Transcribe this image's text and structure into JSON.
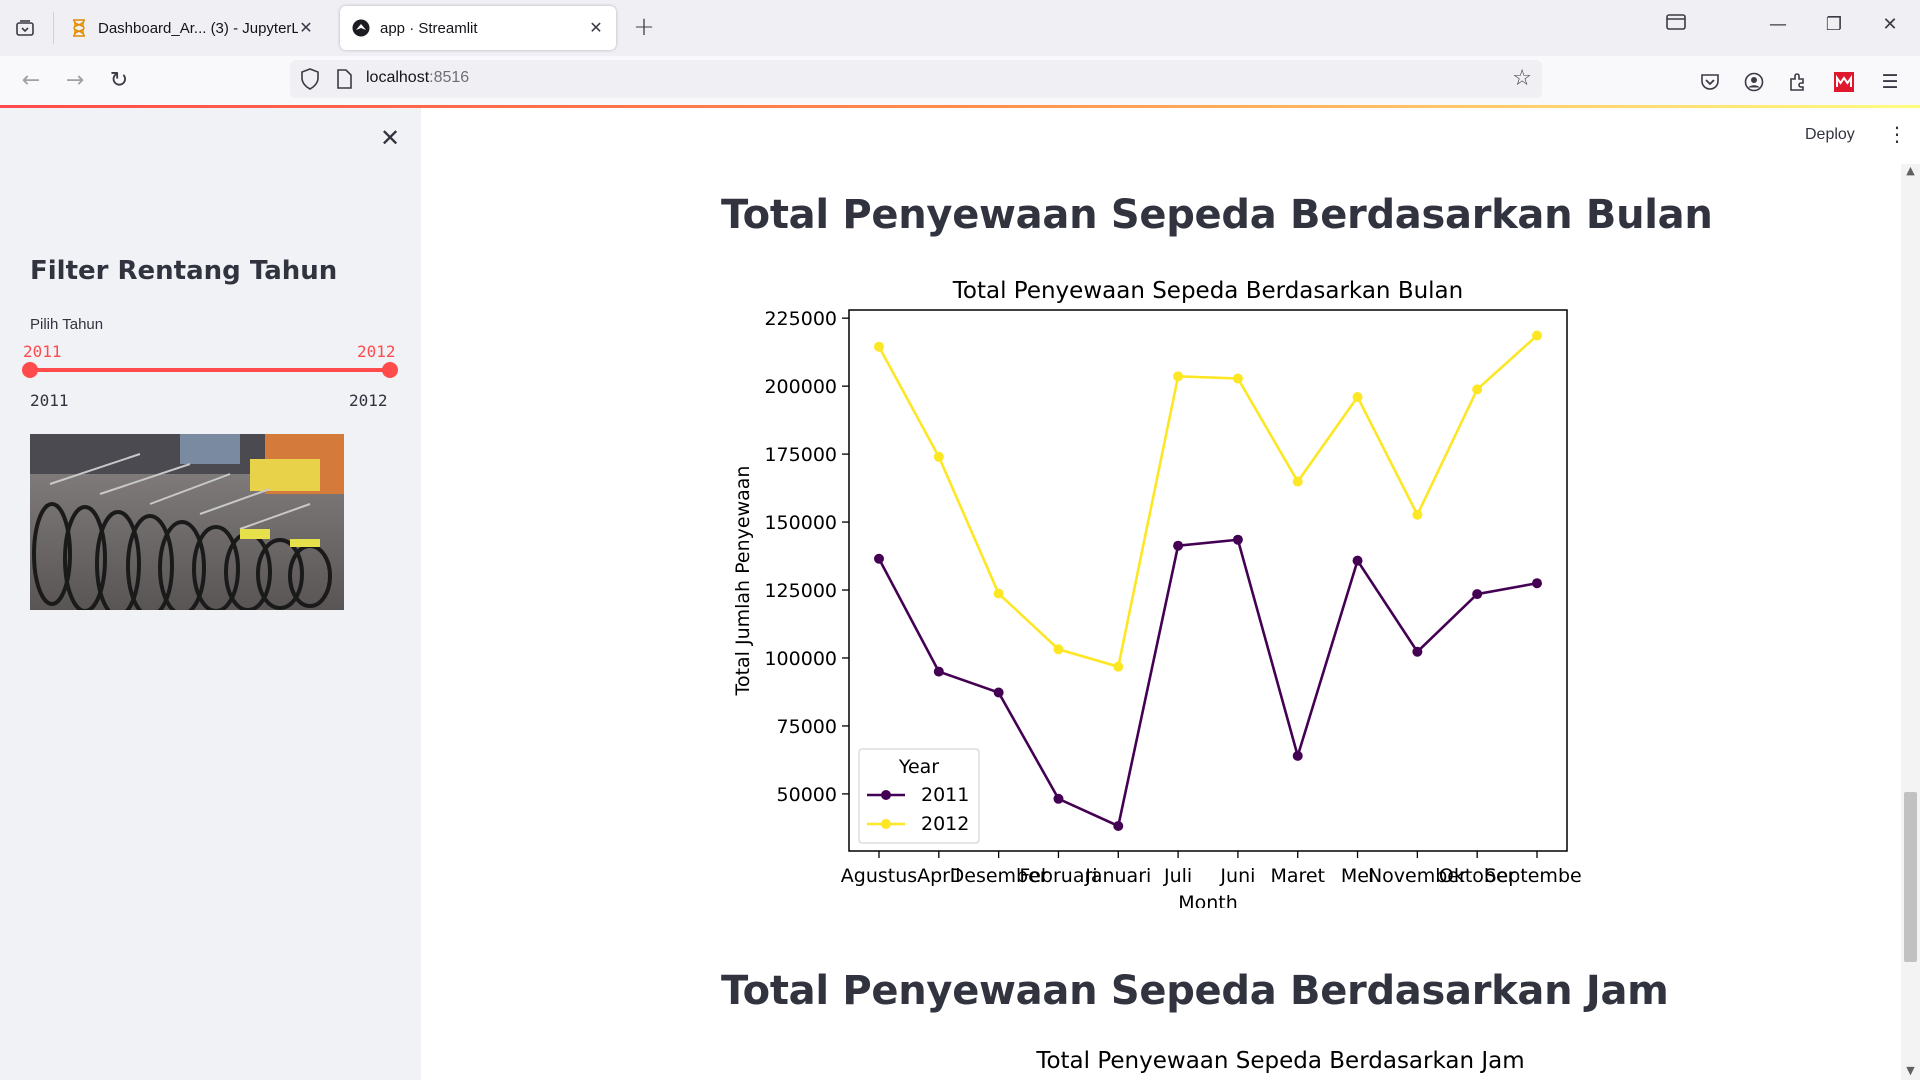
{
  "browser": {
    "tabs": [
      {
        "title": "Dashboard_Ar... (3) - JupyterLab",
        "active": false,
        "icon": "hourglass-icon"
      },
      {
        "title": "app · Streamlit",
        "active": true,
        "icon": "streamlit-icon"
      }
    ],
    "url": {
      "host": "localhost",
      "port": ":8516"
    }
  },
  "app": {
    "deploy_label": "Deploy",
    "sidebar": {
      "title": "Filter Rentang Tahun",
      "slider": {
        "label": "Pilih Tahun",
        "value_low": "2011",
        "value_high": "2012",
        "min": "2011",
        "max": "2012",
        "accent": "#ff4b4b"
      }
    },
    "main": {
      "heading1": "Total Penyewaan Sepeda Berdasarkan Bulan",
      "heading2": "Total Penyewaan Sepeda Berdasarkan Jam",
      "chart2_title": "Total Penyewaan Sepeda Berdasarkan Jam"
    }
  },
  "chart_data": {
    "type": "line",
    "title": "Total Penyewaan Sepeda Berdasarkan Bulan",
    "xlabel": "Month",
    "ylabel": "Total Jumlah Penyewaan",
    "categories": [
      "Agustus",
      "April",
      "Desember",
      "Februari",
      "Januari",
      "Juli",
      "Juni",
      "Maret",
      "Mei",
      "November",
      "Oktober",
      "September"
    ],
    "yticks": [
      "50000",
      "75000",
      "100000",
      "125000",
      "150000",
      "175000",
      "200000",
      "225000"
    ],
    "ylim": [
      29000,
      228000
    ],
    "legend": {
      "title": "Year",
      "position": "lower-left"
    },
    "series": [
      {
        "name": "2011",
        "color": "#440154",
        "values": [
          136500,
          95000,
          87300,
          48200,
          38200,
          141300,
          143500,
          64000,
          135800,
          102300,
          123500,
          127500
        ]
      },
      {
        "name": "2012",
        "color": "#fde725",
        "values": [
          214500,
          174000,
          123700,
          103200,
          96800,
          203600,
          202800,
          164900,
          196000,
          152700,
          198800,
          218600
        ]
      }
    ]
  }
}
